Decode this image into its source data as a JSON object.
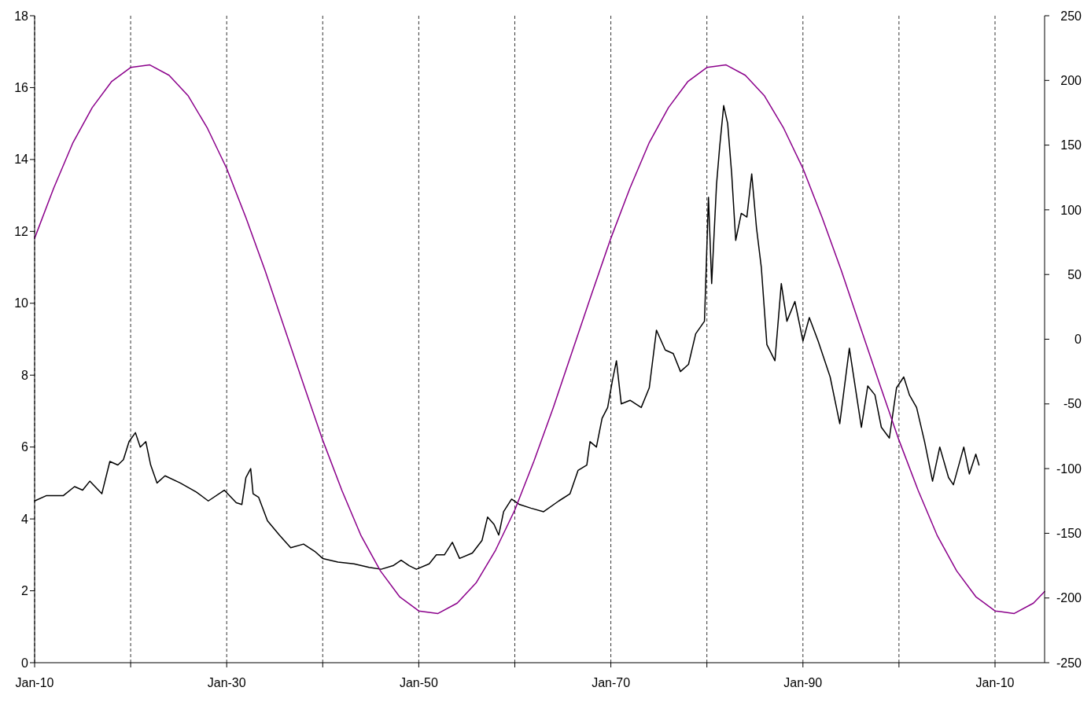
{
  "chart_data": {
    "type": "line",
    "xlim": [
      "1910-01",
      "2015-03"
    ],
    "xticks": [
      {
        "value": "1910-01",
        "label": "Jan-10"
      },
      {
        "value": "1920-01",
        "label": null
      },
      {
        "value": "1930-01",
        "label": "Jan-30"
      },
      {
        "value": "1940-01",
        "label": null
      },
      {
        "value": "1950-01",
        "label": "Jan-50"
      },
      {
        "value": "1960-01",
        "label": null
      },
      {
        "value": "1970-01",
        "label": "Jan-70"
      },
      {
        "value": "1980-01",
        "label": null
      },
      {
        "value": "1990-01",
        "label": "Jan-90"
      },
      {
        "value": "2000-01",
        "label": null
      },
      {
        "value": "2010-01",
        "label": "Jan-10"
      }
    ],
    "ylim": [
      0,
      18
    ],
    "yticks": [
      0,
      2,
      4,
      6,
      8,
      10,
      12,
      14,
      16,
      18
    ],
    "y2lim": [
      -250,
      250
    ],
    "y2ticks": [
      -250,
      -200,
      -150,
      -100,
      -50,
      0,
      50,
      100,
      150,
      200,
      250
    ],
    "grid": "x",
    "series": [
      {
        "color": "#000000",
        "x": [
          "1910-01",
          "1911-04",
          "1913-01",
          "1914-03",
          "1915-01",
          "1915-10",
          "1917-01",
          "1917-11",
          "1918-09",
          "1919-04",
          "1919-11",
          "1920-07",
          "1921-01",
          "1921-08",
          "1922-02",
          "1922-10",
          "1923-08",
          "1925-03",
          "1926-11",
          "1928-02",
          "1929-10",
          "1931-01",
          "1931-08",
          "1932-01",
          "1932-07",
          "1932-10",
          "1933-05",
          "1934-04",
          "1935-07",
          "1936-09",
          "1938-01",
          "1939-03",
          "1940-01",
          "1941-08",
          "1943-04",
          "1944-11",
          "1946-02",
          "1947-05",
          "1948-03",
          "1949-01",
          "1949-10",
          "1951-02",
          "1951-11",
          "1952-09",
          "1953-07",
          "1954-04",
          "1955-08",
          "1956-08",
          "1957-03",
          "1957-11",
          "1958-05",
          "1958-11",
          "1959-09",
          "1960-07",
          "1961-09",
          "1963-01",
          "1964-08",
          "1965-10",
          "1966-08",
          "1967-07",
          "1967-11",
          "1968-07",
          "1969-02",
          "1969-09",
          "1970-03",
          "1970-08",
          "1971-02",
          "1972-01",
          "1973-03",
          "1974-01",
          "1974-10",
          "1975-09",
          "1976-07",
          "1977-04",
          "1978-02",
          "1978-11",
          "1979-10",
          "1980-03",
          "1980-07",
          "1981-01",
          "1981-05",
          "1981-10",
          "1982-03",
          "1982-08",
          "1983-01",
          "1983-08",
          "1984-03",
          "1984-09",
          "1985-03",
          "1985-09",
          "1986-04",
          "1987-02",
          "1987-10",
          "1988-05",
          "1989-03",
          "1990-01",
          "1990-09",
          "1991-08",
          "1992-11",
          "1993-11",
          "1994-11",
          "1996-02",
          "1996-10",
          "1997-07",
          "1998-03",
          "1999-01",
          "1999-10",
          "2000-07",
          "2001-02",
          "2001-11",
          "2002-09",
          "2003-07",
          "2004-04",
          "2005-03",
          "2005-09",
          "2006-10",
          "2007-05",
          "2008-01",
          "2008-05"
        ],
        "values": [
          4.5,
          4.65,
          4.65,
          4.9,
          4.8,
          5.05,
          4.7,
          5.6,
          5.5,
          5.65,
          6.15,
          6.4,
          6.0,
          6.15,
          5.5,
          5.0,
          5.2,
          5.0,
          4.75,
          4.5,
          4.8,
          4.45,
          4.4,
          5.15,
          5.4,
          4.7,
          4.6,
          3.95,
          3.55,
          3.2,
          3.3,
          3.1,
          2.9,
          2.8,
          2.75,
          2.65,
          2.6,
          2.7,
          2.85,
          2.7,
          2.6,
          2.75,
          3.0,
          3.0,
          3.35,
          2.9,
          3.05,
          3.4,
          4.05,
          3.85,
          3.55,
          4.2,
          4.55,
          4.4,
          4.3,
          4.2,
          4.5,
          4.7,
          5.35,
          5.5,
          6.15,
          6.0,
          6.8,
          7.1,
          7.85,
          8.4,
          7.2,
          7.3,
          7.1,
          7.65,
          9.25,
          8.7,
          8.6,
          8.1,
          8.3,
          9.15,
          9.5,
          12.95,
          10.55,
          13.3,
          14.35,
          15.5,
          15.0,
          13.6,
          11.75,
          12.5,
          12.4,
          13.6,
          12.1,
          11.0,
          8.85,
          8.4,
          10.55,
          9.5,
          10.05,
          8.95,
          9.6,
          8.95,
          7.95,
          6.65,
          8.75,
          6.55,
          7.7,
          7.45,
          6.55,
          6.25,
          7.65,
          7.95,
          7.45,
          7.1,
          6.15,
          5.05,
          6.0,
          5.15,
          4.95,
          6.0,
          5.25,
          5.8,
          5.5
        ]
      },
      {
        "color": "#8b008b",
        "axis": "y2",
        "x": [
          "1910-01",
          "1912-01",
          "1914-01",
          "1916-01",
          "1918-01",
          "1920-01",
          "1922-01",
          "1924-01",
          "1926-01",
          "1928-01",
          "1930-01",
          "1932-01",
          "1934-01",
          "1936-01",
          "1938-01",
          "1940-01",
          "1942-01",
          "1944-01",
          "1946-01",
          "1948-01",
          "1950-01",
          "1952-01",
          "1954-01",
          "1956-01",
          "1958-01",
          "1960-01",
          "1962-01",
          "1964-01",
          "1966-01",
          "1968-01",
          "1970-01",
          "1972-01",
          "1974-01",
          "1976-01",
          "1978-01",
          "1980-01",
          "1982-01",
          "1984-01",
          "1986-01",
          "1988-01",
          "1990-01",
          "1992-01",
          "1994-01",
          "1996-01",
          "1998-01",
          "2000-01",
          "2002-01",
          "2004-01",
          "2006-01",
          "2008-01",
          "2010-01",
          "2012-01",
          "2014-01",
          "2015-03"
        ],
        "values": [
          78,
          117,
          152,
          179,
          199,
          210,
          212,
          204,
          188,
          163,
          132,
          94,
          53,
          9,
          -35,
          -78,
          -117,
          -152,
          -179,
          -199,
          -210,
          -212,
          -204,
          -188,
          -163,
          -132,
          -94,
          -53,
          -9,
          35,
          78,
          117,
          152,
          179,
          199,
          210,
          212,
          204,
          188,
          163,
          132,
          94,
          53,
          9,
          -35,
          -78,
          -117,
          -152,
          -179,
          -199,
          -210,
          -212,
          -204,
          -195
        ]
      }
    ]
  }
}
